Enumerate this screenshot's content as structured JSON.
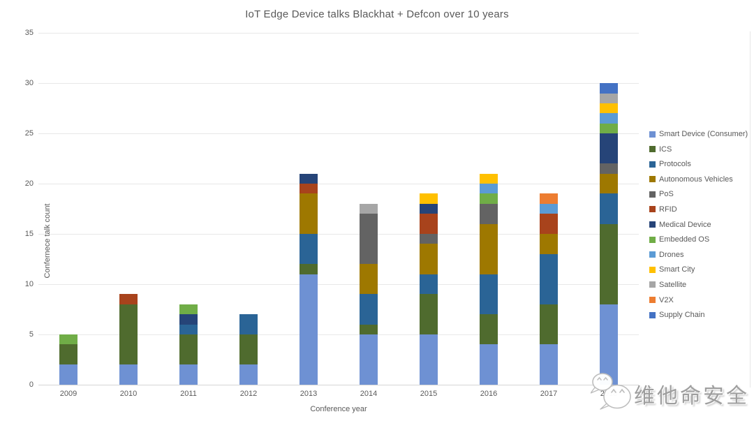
{
  "chart_data": {
    "type": "bar",
    "stacked": true,
    "title": "IoT Edge Device talks Blackhat + Defcon over 10 years",
    "xlabel": "Conference year",
    "ylabel": "Confernece talk count",
    "ylim": [
      0,
      35
    ],
    "yticks": [
      0,
      5,
      10,
      15,
      20,
      25,
      30,
      35
    ],
    "grid": true,
    "legend_position": "right",
    "stack_order": "bottom-to-top is reverse of series list",
    "categories": [
      "2009",
      "2010",
      "2011",
      "2012",
      "2013",
      "2014",
      "2015",
      "2016",
      "2017",
      "2018"
    ],
    "series": [
      {
        "name": "Smart Device (Consumer)",
        "color": "#6E91D3",
        "values": [
          2,
          2,
          2,
          2,
          11,
          5,
          5,
          4,
          4,
          8
        ]
      },
      {
        "name": "ICS",
        "color": "#4F6B2E",
        "values": [
          2,
          6,
          3,
          3,
          1,
          1,
          4,
          3,
          4,
          8
        ]
      },
      {
        "name": "Protocols",
        "color": "#2A6496",
        "values": [
          0,
          0,
          1,
          2,
          3,
          3,
          2,
          4,
          5,
          3
        ]
      },
      {
        "name": "Autonomous Vehicles",
        "color": "#9E7800",
        "values": [
          0,
          0,
          0,
          0,
          4,
          3,
          3,
          5,
          2,
          2
        ]
      },
      {
        "name": "PoS",
        "color": "#636363",
        "values": [
          0,
          0,
          0,
          0,
          0,
          5,
          1,
          2,
          0,
          1
        ]
      },
      {
        "name": "RFID",
        "color": "#A8431C",
        "values": [
          0,
          1,
          0,
          0,
          1,
          0,
          2,
          0,
          2,
          0
        ]
      },
      {
        "name": "Medical Device",
        "color": "#264478",
        "values": [
          0,
          0,
          1,
          0,
          1,
          0,
          1,
          0,
          0,
          3
        ]
      },
      {
        "name": "Embedded OS",
        "color": "#70AD47",
        "values": [
          1,
          0,
          1,
          0,
          0,
          0,
          0,
          1,
          0,
          1
        ]
      },
      {
        "name": "Drones",
        "color": "#5B9BD5",
        "values": [
          0,
          0,
          0,
          0,
          0,
          0,
          0,
          1,
          1,
          1
        ]
      },
      {
        "name": "Smart City",
        "color": "#FFC000",
        "values": [
          0,
          0,
          0,
          0,
          0,
          0,
          1,
          1,
          0,
          1
        ]
      },
      {
        "name": "Satellite",
        "color": "#A6A6A6",
        "values": [
          0,
          0,
          0,
          0,
          0,
          1,
          0,
          0,
          0,
          1
        ]
      },
      {
        "name": "V2X",
        "color": "#ED7D31",
        "values": [
          0,
          0,
          0,
          0,
          0,
          0,
          0,
          0,
          1,
          0
        ]
      },
      {
        "name": "Supply Chain",
        "color": "#4472C4",
        "values": [
          0,
          0,
          0,
          0,
          0,
          0,
          0,
          0,
          0,
          1
        ]
      }
    ],
    "totals_by_year": [
      5,
      9,
      8,
      7,
      21,
      18,
      19,
      21,
      19,
      30
    ]
  },
  "watermark": {
    "text": "维他命安全",
    "logo": "wechat-chat-bubbles-logo",
    "text_color": "#9e9e9e"
  },
  "style_colors": {
    "title_text": "#595959",
    "axis_text": "#595959",
    "gridline": "#e8e8e8",
    "axis_line": "#d6d6d6",
    "background": "#ffffff"
  }
}
